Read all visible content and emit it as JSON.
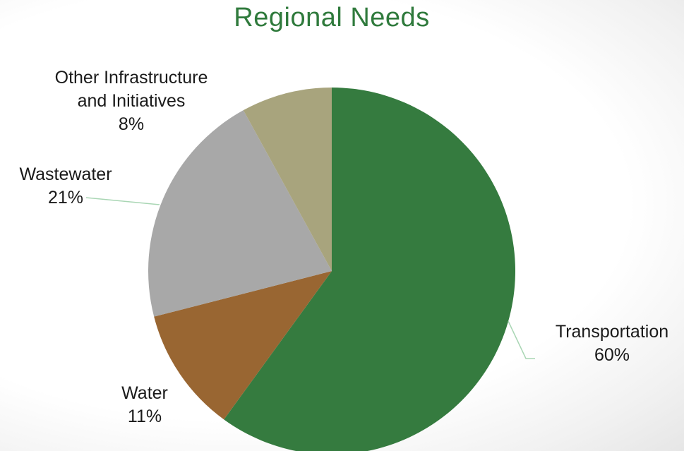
{
  "colors": {
    "title": "#2f7a3c",
    "leader_line": "#a9d6b4",
    "text": "#1a1a1a"
  },
  "chart_data": {
    "type": "pie",
    "title": "Regional Needs",
    "slices": [
      {
        "label_lines": [
          "Transportation"
        ],
        "pct_label": "60%",
        "value": 60,
        "color": "#357b3f"
      },
      {
        "label_lines": [
          "Water"
        ],
        "pct_label": "11%",
        "value": 11,
        "color": "#996632"
      },
      {
        "label_lines": [
          "Wastewater"
        ],
        "pct_label": "21%",
        "value": 21,
        "color": "#a8a8a8"
      },
      {
        "label_lines": [
          "Other Infrastructure",
          "and Initiatives"
        ],
        "pct_label": "8%",
        "value": 8,
        "color": "#a8a47d"
      }
    ],
    "start_angle": "12 o'clock",
    "direction": "clockwise",
    "legend": "none (labels beside slices)"
  }
}
